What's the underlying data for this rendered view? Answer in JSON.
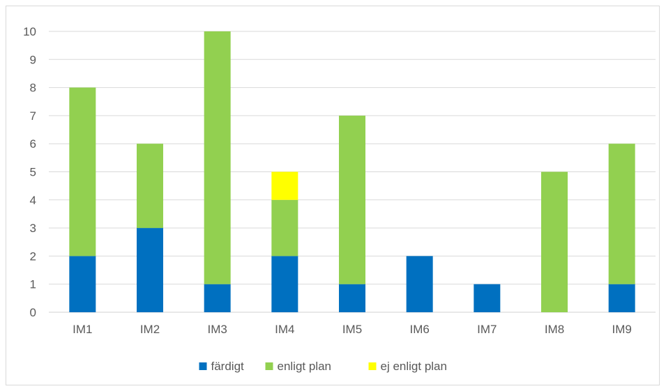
{
  "chart_data": {
    "type": "bar",
    "stacked": true,
    "title": "",
    "xlabel": "",
    "ylabel": "",
    "ylim": [
      0,
      10
    ],
    "yticks": [
      "0",
      "1",
      "2",
      "3",
      "4",
      "5",
      "6",
      "7",
      "8",
      "9",
      "10"
    ],
    "grid": true,
    "legend_position": "bottom",
    "categories": [
      "IM1",
      "IM2",
      "IM3",
      "IM4",
      "IM5",
      "IM6",
      "IM7",
      "IM8",
      "IM9"
    ],
    "series": [
      {
        "name": "färdigt",
        "color": "#0070c0",
        "values": [
          2,
          3,
          1,
          2,
          1,
          2,
          1,
          0,
          1
        ]
      },
      {
        "name": "enligt plan",
        "color": "#92d050",
        "values": [
          6,
          3,
          9,
          2,
          6,
          0,
          0,
          5,
          5
        ]
      },
      {
        "name": "ej enligt plan",
        "color": "#ffff00",
        "values": [
          0,
          0,
          0,
          1,
          0,
          0,
          0,
          0,
          0
        ]
      }
    ]
  }
}
